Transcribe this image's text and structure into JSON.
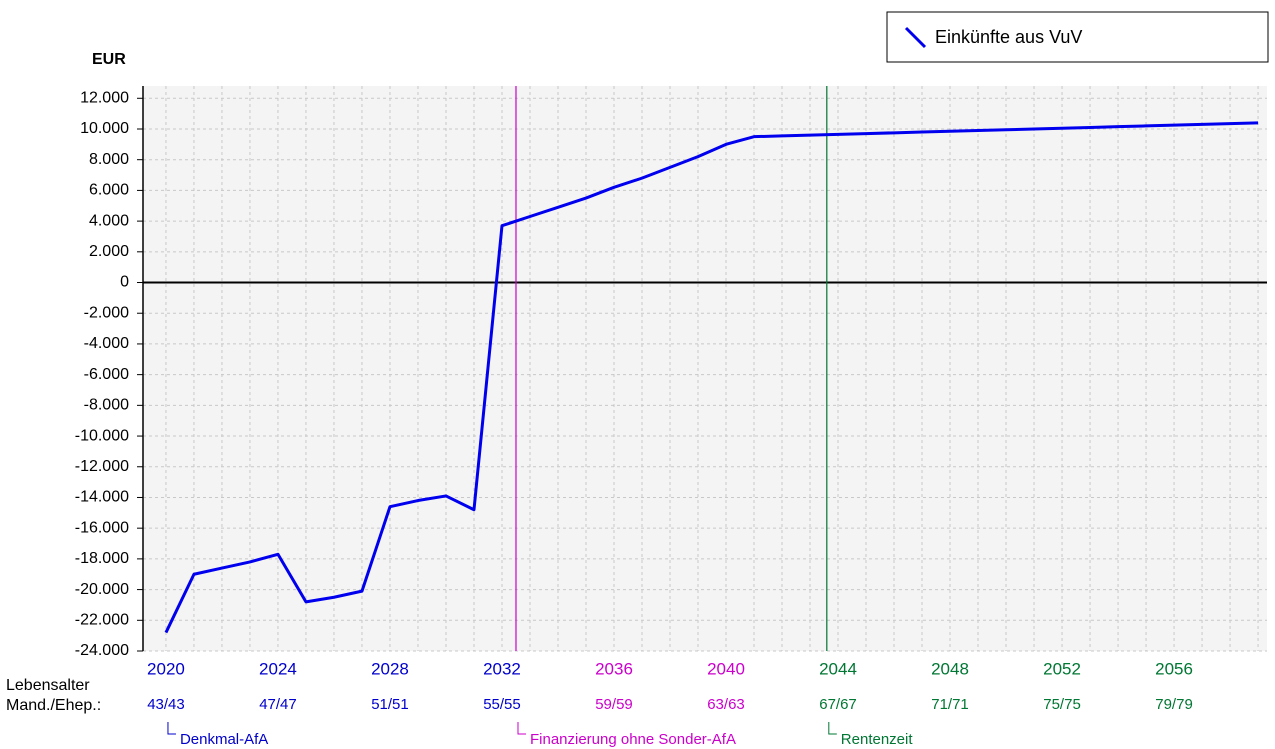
{
  "chart_data": {
    "type": "line",
    "y_unit": "EUR",
    "x": [
      2020,
      2021,
      2022,
      2023,
      2024,
      2025,
      2026,
      2027,
      2028,
      2029,
      2030,
      2031,
      2032,
      2033,
      2034,
      2035,
      2036,
      2037,
      2038,
      2039,
      2040,
      2041,
      2042,
      2043,
      2044,
      2045,
      2046,
      2047,
      2048,
      2049,
      2050,
      2051,
      2052,
      2053,
      2054,
      2055,
      2056,
      2057,
      2058,
      2059
    ],
    "series": [
      {
        "name": "Einkünfte aus VuV",
        "color": "#0000ee",
        "values": [
          -22800,
          -19000,
          -18600,
          -18200,
          -17700,
          -20800,
          -20500,
          -20100,
          -14600,
          -14200,
          -13900,
          -14800,
          3700,
          4300,
          4900,
          5500,
          6200,
          6800,
          7500,
          8200,
          9000,
          9500,
          9550,
          9600,
          9650,
          9700,
          9750,
          9800,
          9850,
          9900,
          9950,
          10000,
          10050,
          10100,
          10150,
          10200,
          10250,
          10300,
          10350,
          10400
        ]
      }
    ],
    "xlim": [
      2019.18,
      2059.32
    ],
    "ylim": [
      -24000,
      12800
    ],
    "yticks": [
      {
        "value": 12000,
        "label": "12.000"
      },
      {
        "value": 10000,
        "label": "10.000"
      },
      {
        "value": 8000,
        "label": "8.000"
      },
      {
        "value": 6000,
        "label": "6.000"
      },
      {
        "value": 4000,
        "label": "4.000"
      },
      {
        "value": 2000,
        "label": "2.000"
      },
      0,
      {
        "value": -2000,
        "label": "-2.000"
      },
      {
        "value": -4000,
        "label": "-4.000"
      },
      {
        "value": -6000,
        "label": "-6.000"
      },
      {
        "value": -8000,
        "label": "-8.000"
      },
      {
        "value": -10000,
        "label": "-10.000"
      },
      {
        "value": -12000,
        "label": "-12.000"
      },
      {
        "value": -14000,
        "label": "-14.000"
      },
      {
        "value": -16000,
        "label": "-16.000"
      },
      {
        "value": -18000,
        "label": "-18.000"
      },
      {
        "value": -20000,
        "label": "-20.000"
      },
      {
        "value": -22000,
        "label": "-22.000"
      },
      {
        "value": -24000,
        "label": "-24.000"
      }
    ],
    "xticks": [
      2020,
      2024,
      2028,
      2032,
      2036,
      2040,
      2044,
      2048,
      2052,
      2056
    ],
    "age_title": "Lebensalter",
    "age_subtitle": "Mand./Ehep.:",
    "age_labels": [
      "43/43",
      "47/47",
      "51/51",
      "55/55",
      "59/59",
      "63/63",
      "67/67",
      "71/71",
      "75/75",
      "79/79"
    ],
    "xtick_colors": [
      "#0000cc",
      "#0000cc",
      "#0000cc",
      "#0000cc",
      "#cc00cc",
      "#cc00cc",
      "#007733",
      "#007733",
      "#007733",
      "#007733"
    ],
    "annotations": [
      {
        "x": 2020,
        "label": "Denkmal-AfA",
        "color": "#0000cc",
        "line": false
      },
      {
        "x": 2032.5,
        "label": "Finanzierung ohne Sonder-AfA",
        "color": "#cc00cc",
        "line": true
      },
      {
        "x": 2043.6,
        "label": "Rentenzeit",
        "color": "#007733",
        "line": true
      }
    ],
    "grid": true,
    "legend": "top-right"
  }
}
